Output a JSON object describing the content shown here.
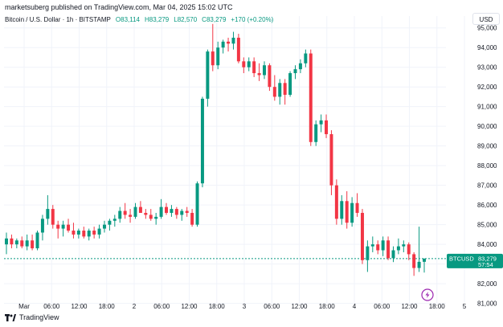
{
  "header": {
    "publisher": "marketsuberg published on TradingView.com, Mar 04, 2025 15:02 UTC",
    "legend": {
      "symbol": "Bitcoin / U.S. Dollar · 1h · BITSTAMP",
      "open": "O83,114",
      "high": "H83,279",
      "low": "L82,570",
      "close": "C83,279",
      "change": "+170 (+0.20%)"
    },
    "currency": "USD"
  },
  "footer": {
    "brand": "TradingView"
  },
  "colors": {
    "up": "#089981",
    "down": "#f23645",
    "grid": "#f0f3fa",
    "axis_text": "#131722",
    "price_line": "#089981"
  },
  "chart_data": {
    "type": "candlestick",
    "symbol": "BTCUSD",
    "ylim": [
      80700,
      95600
    ],
    "y_ticks": [
      "81,000",
      "82,000",
      "83,000",
      "84,000",
      "85,000",
      "86,000",
      "87,000",
      "88,000",
      "89,000",
      "90,000",
      "91,000",
      "92,000",
      "93,000",
      "94,000",
      "95,000"
    ],
    "x_ticks": [
      "Mar",
      "06:00",
      "12:00",
      "18:00",
      "2",
      "06:00",
      "12:00",
      "18:00",
      "3",
      "06:00",
      "12:00",
      "18:00",
      "4",
      "06:00",
      "12:00",
      "18:00",
      "5"
    ],
    "last_price": {
      "label": "BTCUSD",
      "value": "83,279",
      "sub": "57:54"
    },
    "candles": [
      {
        "o": 84000,
        "h": 84600,
        "l": 83500,
        "c": 84300
      },
      {
        "o": 84300,
        "h": 84500,
        "l": 83800,
        "c": 84000
      },
      {
        "o": 84000,
        "h": 84300,
        "l": 83800,
        "c": 84200
      },
      {
        "o": 84200,
        "h": 84400,
        "l": 83800,
        "c": 83900
      },
      {
        "o": 83900,
        "h": 84500,
        "l": 83700,
        "c": 84200
      },
      {
        "o": 84200,
        "h": 84500,
        "l": 83700,
        "c": 83800
      },
      {
        "o": 83800,
        "h": 84700,
        "l": 83700,
        "c": 84600
      },
      {
        "o": 84600,
        "h": 85500,
        "l": 84200,
        "c": 85300
      },
      {
        "o": 85300,
        "h": 86500,
        "l": 85000,
        "c": 85800
      },
      {
        "o": 85800,
        "h": 86000,
        "l": 84800,
        "c": 85000
      },
      {
        "o": 85000,
        "h": 85200,
        "l": 84300,
        "c": 84800
      },
      {
        "o": 84800,
        "h": 85200,
        "l": 84400,
        "c": 85000
      },
      {
        "o": 85000,
        "h": 85300,
        "l": 84600,
        "c": 84700
      },
      {
        "o": 84700,
        "h": 85100,
        "l": 84300,
        "c": 84500
      },
      {
        "o": 84500,
        "h": 84800,
        "l": 84300,
        "c": 84700
      },
      {
        "o": 84700,
        "h": 84900,
        "l": 84300,
        "c": 84400
      },
      {
        "o": 84400,
        "h": 84800,
        "l": 84200,
        "c": 84700
      },
      {
        "o": 84700,
        "h": 84900,
        "l": 84300,
        "c": 84500
      },
      {
        "o": 84500,
        "h": 85000,
        "l": 84300,
        "c": 84800
      },
      {
        "o": 84800,
        "h": 85200,
        "l": 84600,
        "c": 85000
      },
      {
        "o": 85000,
        "h": 85300,
        "l": 84700,
        "c": 85200
      },
      {
        "o": 85200,
        "h": 85500,
        "l": 84900,
        "c": 85300
      },
      {
        "o": 85300,
        "h": 85900,
        "l": 85100,
        "c": 85700
      },
      {
        "o": 85700,
        "h": 86100,
        "l": 85300,
        "c": 85500
      },
      {
        "o": 85500,
        "h": 85800,
        "l": 85100,
        "c": 85400
      },
      {
        "o": 85400,
        "h": 86100,
        "l": 85300,
        "c": 85900
      },
      {
        "o": 85900,
        "h": 86200,
        "l": 85600,
        "c": 85600
      },
      {
        "o": 85600,
        "h": 85800,
        "l": 85300,
        "c": 85500
      },
      {
        "o": 85500,
        "h": 85800,
        "l": 85200,
        "c": 85300
      },
      {
        "o": 85300,
        "h": 85600,
        "l": 85000,
        "c": 85400
      },
      {
        "o": 85400,
        "h": 86300,
        "l": 85300,
        "c": 85900
      },
      {
        "o": 85900,
        "h": 86100,
        "l": 85500,
        "c": 85600
      },
      {
        "o": 85600,
        "h": 86000,
        "l": 85400,
        "c": 85800
      },
      {
        "o": 85800,
        "h": 85900,
        "l": 85300,
        "c": 85500
      },
      {
        "o": 85500,
        "h": 85800,
        "l": 85200,
        "c": 85700
      },
      {
        "o": 85700,
        "h": 85900,
        "l": 85400,
        "c": 85600
      },
      {
        "o": 85600,
        "h": 85800,
        "l": 84900,
        "c": 85000
      },
      {
        "o": 85000,
        "h": 87200,
        "l": 84900,
        "c": 87100
      },
      {
        "o": 87100,
        "h": 91500,
        "l": 86900,
        "c": 91400
      },
      {
        "o": 91400,
        "h": 93900,
        "l": 91000,
        "c": 93800
      },
      {
        "o": 93800,
        "h": 95200,
        "l": 92800,
        "c": 93100
      },
      {
        "o": 93100,
        "h": 94300,
        "l": 92900,
        "c": 94000
      },
      {
        "o": 94000,
        "h": 94400,
        "l": 93700,
        "c": 94300
      },
      {
        "o": 94300,
        "h": 94500,
        "l": 93800,
        "c": 94200
      },
      {
        "o": 94200,
        "h": 94800,
        "l": 93900,
        "c": 94500
      },
      {
        "o": 94500,
        "h": 94700,
        "l": 93200,
        "c": 93300
      },
      {
        "o": 93300,
        "h": 93500,
        "l": 92700,
        "c": 93000
      },
      {
        "o": 93000,
        "h": 93500,
        "l": 92800,
        "c": 93300
      },
      {
        "o": 93300,
        "h": 93500,
        "l": 92500,
        "c": 92700
      },
      {
        "o": 92700,
        "h": 93200,
        "l": 92300,
        "c": 92600
      },
      {
        "o": 92600,
        "h": 93300,
        "l": 92400,
        "c": 93100
      },
      {
        "o": 93100,
        "h": 93200,
        "l": 91800,
        "c": 92000
      },
      {
        "o": 92000,
        "h": 92600,
        "l": 91300,
        "c": 91500
      },
      {
        "o": 91500,
        "h": 92400,
        "l": 91100,
        "c": 92200
      },
      {
        "o": 92200,
        "h": 92400,
        "l": 91100,
        "c": 91600
      },
      {
        "o": 91600,
        "h": 92800,
        "l": 91500,
        "c": 92700
      },
      {
        "o": 92700,
        "h": 93100,
        "l": 92400,
        "c": 92900
      },
      {
        "o": 92900,
        "h": 93400,
        "l": 92700,
        "c": 93200
      },
      {
        "o": 93200,
        "h": 93900,
        "l": 93000,
        "c": 93700
      },
      {
        "o": 93700,
        "h": 93900,
        "l": 89000,
        "c": 89200
      },
      {
        "o": 89200,
        "h": 90300,
        "l": 89000,
        "c": 90100
      },
      {
        "o": 90100,
        "h": 90600,
        "l": 89700,
        "c": 90300
      },
      {
        "o": 90300,
        "h": 90600,
        "l": 89400,
        "c": 89600
      },
      {
        "o": 89600,
        "h": 89800,
        "l": 86500,
        "c": 87000
      },
      {
        "o": 87000,
        "h": 87300,
        "l": 85000,
        "c": 85300
      },
      {
        "o": 85300,
        "h": 86500,
        "l": 85000,
        "c": 86200
      },
      {
        "o": 86200,
        "h": 86700,
        "l": 84800,
        "c": 85100
      },
      {
        "o": 85100,
        "h": 86400,
        "l": 84900,
        "c": 86100
      },
      {
        "o": 86100,
        "h": 86600,
        "l": 85400,
        "c": 85600
      },
      {
        "o": 85600,
        "h": 85800,
        "l": 83000,
        "c": 83200
      },
      {
        "o": 83200,
        "h": 84200,
        "l": 82600,
        "c": 83900
      },
      {
        "o": 83900,
        "h": 84400,
        "l": 83600,
        "c": 84000
      },
      {
        "o": 84000,
        "h": 84200,
        "l": 83500,
        "c": 83700
      },
      {
        "o": 83700,
        "h": 84400,
        "l": 83400,
        "c": 84200
      },
      {
        "o": 84200,
        "h": 84400,
        "l": 83200,
        "c": 83300
      },
      {
        "o": 83300,
        "h": 83900,
        "l": 83100,
        "c": 83700
      },
      {
        "o": 83700,
        "h": 84300,
        "l": 83500,
        "c": 83900
      },
      {
        "o": 83900,
        "h": 84200,
        "l": 83600,
        "c": 84000
      },
      {
        "o": 84000,
        "h": 84100,
        "l": 83200,
        "c": 83500
      },
      {
        "o": 83500,
        "h": 83600,
        "l": 82400,
        "c": 82800
      },
      {
        "o": 82800,
        "h": 84900,
        "l": 82600,
        "c": 83114
      },
      {
        "o": 83114,
        "h": 83279,
        "l": 82570,
        "c": 83279
      }
    ]
  }
}
